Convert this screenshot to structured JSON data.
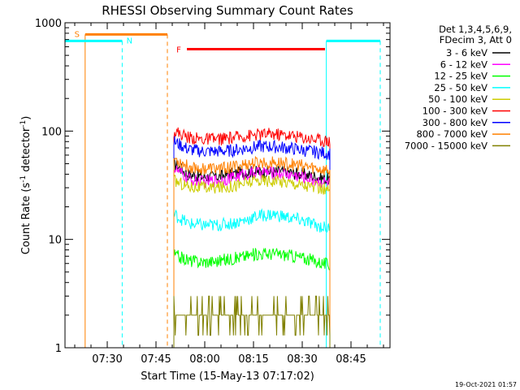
{
  "chart_data": {
    "type": "line",
    "title": "RHESSI Observing Summary Count Rates",
    "xlabel": "Start Time (15-May-13 07:17:02)",
    "ylabel": "Count Rate (s⁻¹ detector⁻¹)",
    "ylabel_parts": {
      "main": "Count Rate (s",
      "sup1": "-1",
      "mid": " detector",
      "sup2": "-1",
      "end": ")"
    },
    "yscale": "log",
    "ylim": [
      1,
      1000
    ],
    "xlim_minutes": [
      0,
      100
    ],
    "x_ticks": [
      {
        "minute": 13,
        "label": "07:30"
      },
      {
        "minute": 28,
        "label": "07:45"
      },
      {
        "minute": 43,
        "label": "08:00"
      },
      {
        "minute": 58,
        "label": "08:15"
      },
      {
        "minute": 73,
        "label": "08:30"
      },
      {
        "minute": 88,
        "label": "08:45"
      }
    ],
    "y_ticks": [
      {
        "value": 1,
        "label": "1"
      },
      {
        "value": 10,
        "label": "10"
      },
      {
        "value": 100,
        "label": "100"
      },
      {
        "value": 1000,
        "label": "1000"
      }
    ],
    "grid": false,
    "legend_position": "right",
    "legend_header": [
      "Det 1,3,4,5,6,9,",
      "FDecim 3, Att 0"
    ],
    "data_start_minute": 33.5,
    "data_end_minute": 81.5,
    "series": [
      {
        "name": "3 - 6 keV",
        "color": "#000000",
        "values": [
          50,
          40,
          38,
          38,
          40,
          42,
          42,
          42,
          42,
          40,
          38,
          36
        ]
      },
      {
        "name": "6 - 12 keV",
        "color": "#ff00ff",
        "values": [
          45,
          36,
          34,
          35,
          37,
          40,
          42,
          41,
          40,
          38,
          35,
          33
        ]
      },
      {
        "name": "12 - 25 keV",
        "color": "#00ff00",
        "values": [
          7.2,
          6.4,
          6.2,
          6.3,
          6.6,
          7.0,
          7.4,
          7.4,
          7.2,
          6.8,
          6.3,
          5.8
        ]
      },
      {
        "name": "25 - 50 keV",
        "color": "#00ffff",
        "values": [
          17,
          14,
          13.5,
          13.5,
          14,
          15,
          16.5,
          17,
          16,
          15,
          13.5,
          12.5
        ]
      },
      {
        "name": "50 - 100 keV",
        "color": "#cccc00",
        "values": [
          35,
          31,
          30,
          30,
          31,
          33,
          35,
          35,
          34,
          32,
          30,
          28
        ]
      },
      {
        "name": "100 - 300 keV",
        "color": "#ff0000",
        "values": [
          100,
          88,
          84,
          84,
          86,
          90,
          93,
          94,
          92,
          88,
          84,
          81
        ]
      },
      {
        "name": "300 - 800 keV",
        "color": "#0000ff",
        "values": [
          80,
          68,
          65,
          65,
          66,
          69,
          72,
          72,
          70,
          67,
          64,
          62
        ]
      },
      {
        "name": "800 - 7000 keV",
        "color": "#ff8000",
        "values": [
          56,
          47,
          45,
          45,
          46,
          49,
          51,
          51,
          50,
          48,
          45,
          43
        ]
      },
      {
        "name": "7000 - 15000 keV",
        "color": "#808000",
        "values": [
          2,
          2,
          2,
          2,
          2,
          2,
          2,
          2,
          3,
          3,
          2,
          2
        ]
      }
    ],
    "flags": [
      {
        "label": "S",
        "color": "#ff8000",
        "start_minute": 6.2,
        "end_minute": 31.5,
        "level": 780,
        "style": "solid-start-dashed-end"
      },
      {
        "label": "N",
        "color": "#00ffff",
        "start_minute": 0,
        "end_minute": 17.6,
        "level": 680,
        "style": "dashed-end"
      },
      {
        "label": "N",
        "color": "#00ffff",
        "start_minute": 80.4,
        "end_minute": 97,
        "level": 680,
        "style": "solid-start-dashed-end"
      },
      {
        "label": "F",
        "color": "#ff0000",
        "start_minute": 37.5,
        "end_minute": 80,
        "level": 570,
        "style": "bar"
      }
    ]
  },
  "footer": {
    "timestamp": "19-Oct-2021 01:57"
  }
}
